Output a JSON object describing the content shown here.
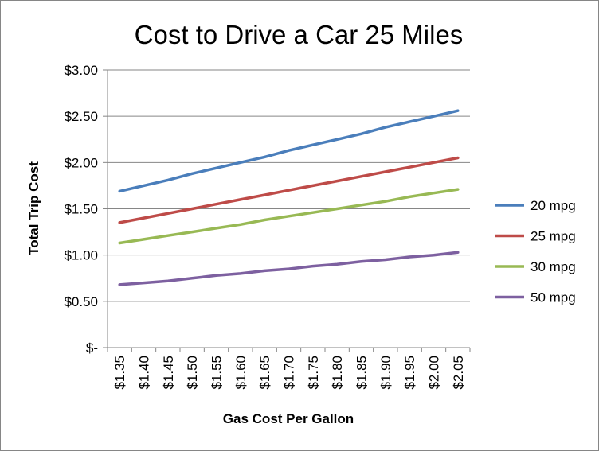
{
  "chart_data": {
    "type": "line",
    "title": "Cost to Drive a Car 25 Miles",
    "xlabel": "Gas Cost Per Gallon",
    "ylabel": "Total Trip Cost",
    "categories": [
      "$1.35",
      "$1.40",
      "$1.45",
      "$1.50",
      "$1.55",
      "$1.60",
      "$1.65",
      "$1.70",
      "$1.75",
      "$1.80",
      "$1.85",
      "$1.90",
      "$1.95",
      "$2.00",
      "$2.05"
    ],
    "y_ticks": [
      "$-",
      "$0.50",
      "$1.00",
      "$1.50",
      "$2.00",
      "$2.50",
      "$3.00"
    ],
    "ylim": [
      0,
      3
    ],
    "grid": true,
    "legend_position": "right",
    "series": [
      {
        "name": "20 mpg",
        "color": "#4a7ebb",
        "values": [
          1.69,
          1.75,
          1.81,
          1.88,
          1.94,
          2.0,
          2.06,
          2.13,
          2.19,
          2.25,
          2.31,
          2.38,
          2.44,
          2.5,
          2.56
        ]
      },
      {
        "name": "25 mpg",
        "color": "#be4b48",
        "values": [
          1.35,
          1.4,
          1.45,
          1.5,
          1.55,
          1.6,
          1.65,
          1.7,
          1.75,
          1.8,
          1.85,
          1.9,
          1.95,
          2.0,
          2.05
        ]
      },
      {
        "name": "30 mpg",
        "color": "#98b954",
        "values": [
          1.13,
          1.17,
          1.21,
          1.25,
          1.29,
          1.33,
          1.38,
          1.42,
          1.46,
          1.5,
          1.54,
          1.58,
          1.63,
          1.67,
          1.71
        ]
      },
      {
        "name": "50 mpg",
        "color": "#7d60a0",
        "values": [
          0.68,
          0.7,
          0.72,
          0.75,
          0.78,
          0.8,
          0.83,
          0.85,
          0.88,
          0.9,
          0.93,
          0.95,
          0.98,
          1.0,
          1.03
        ]
      }
    ]
  }
}
